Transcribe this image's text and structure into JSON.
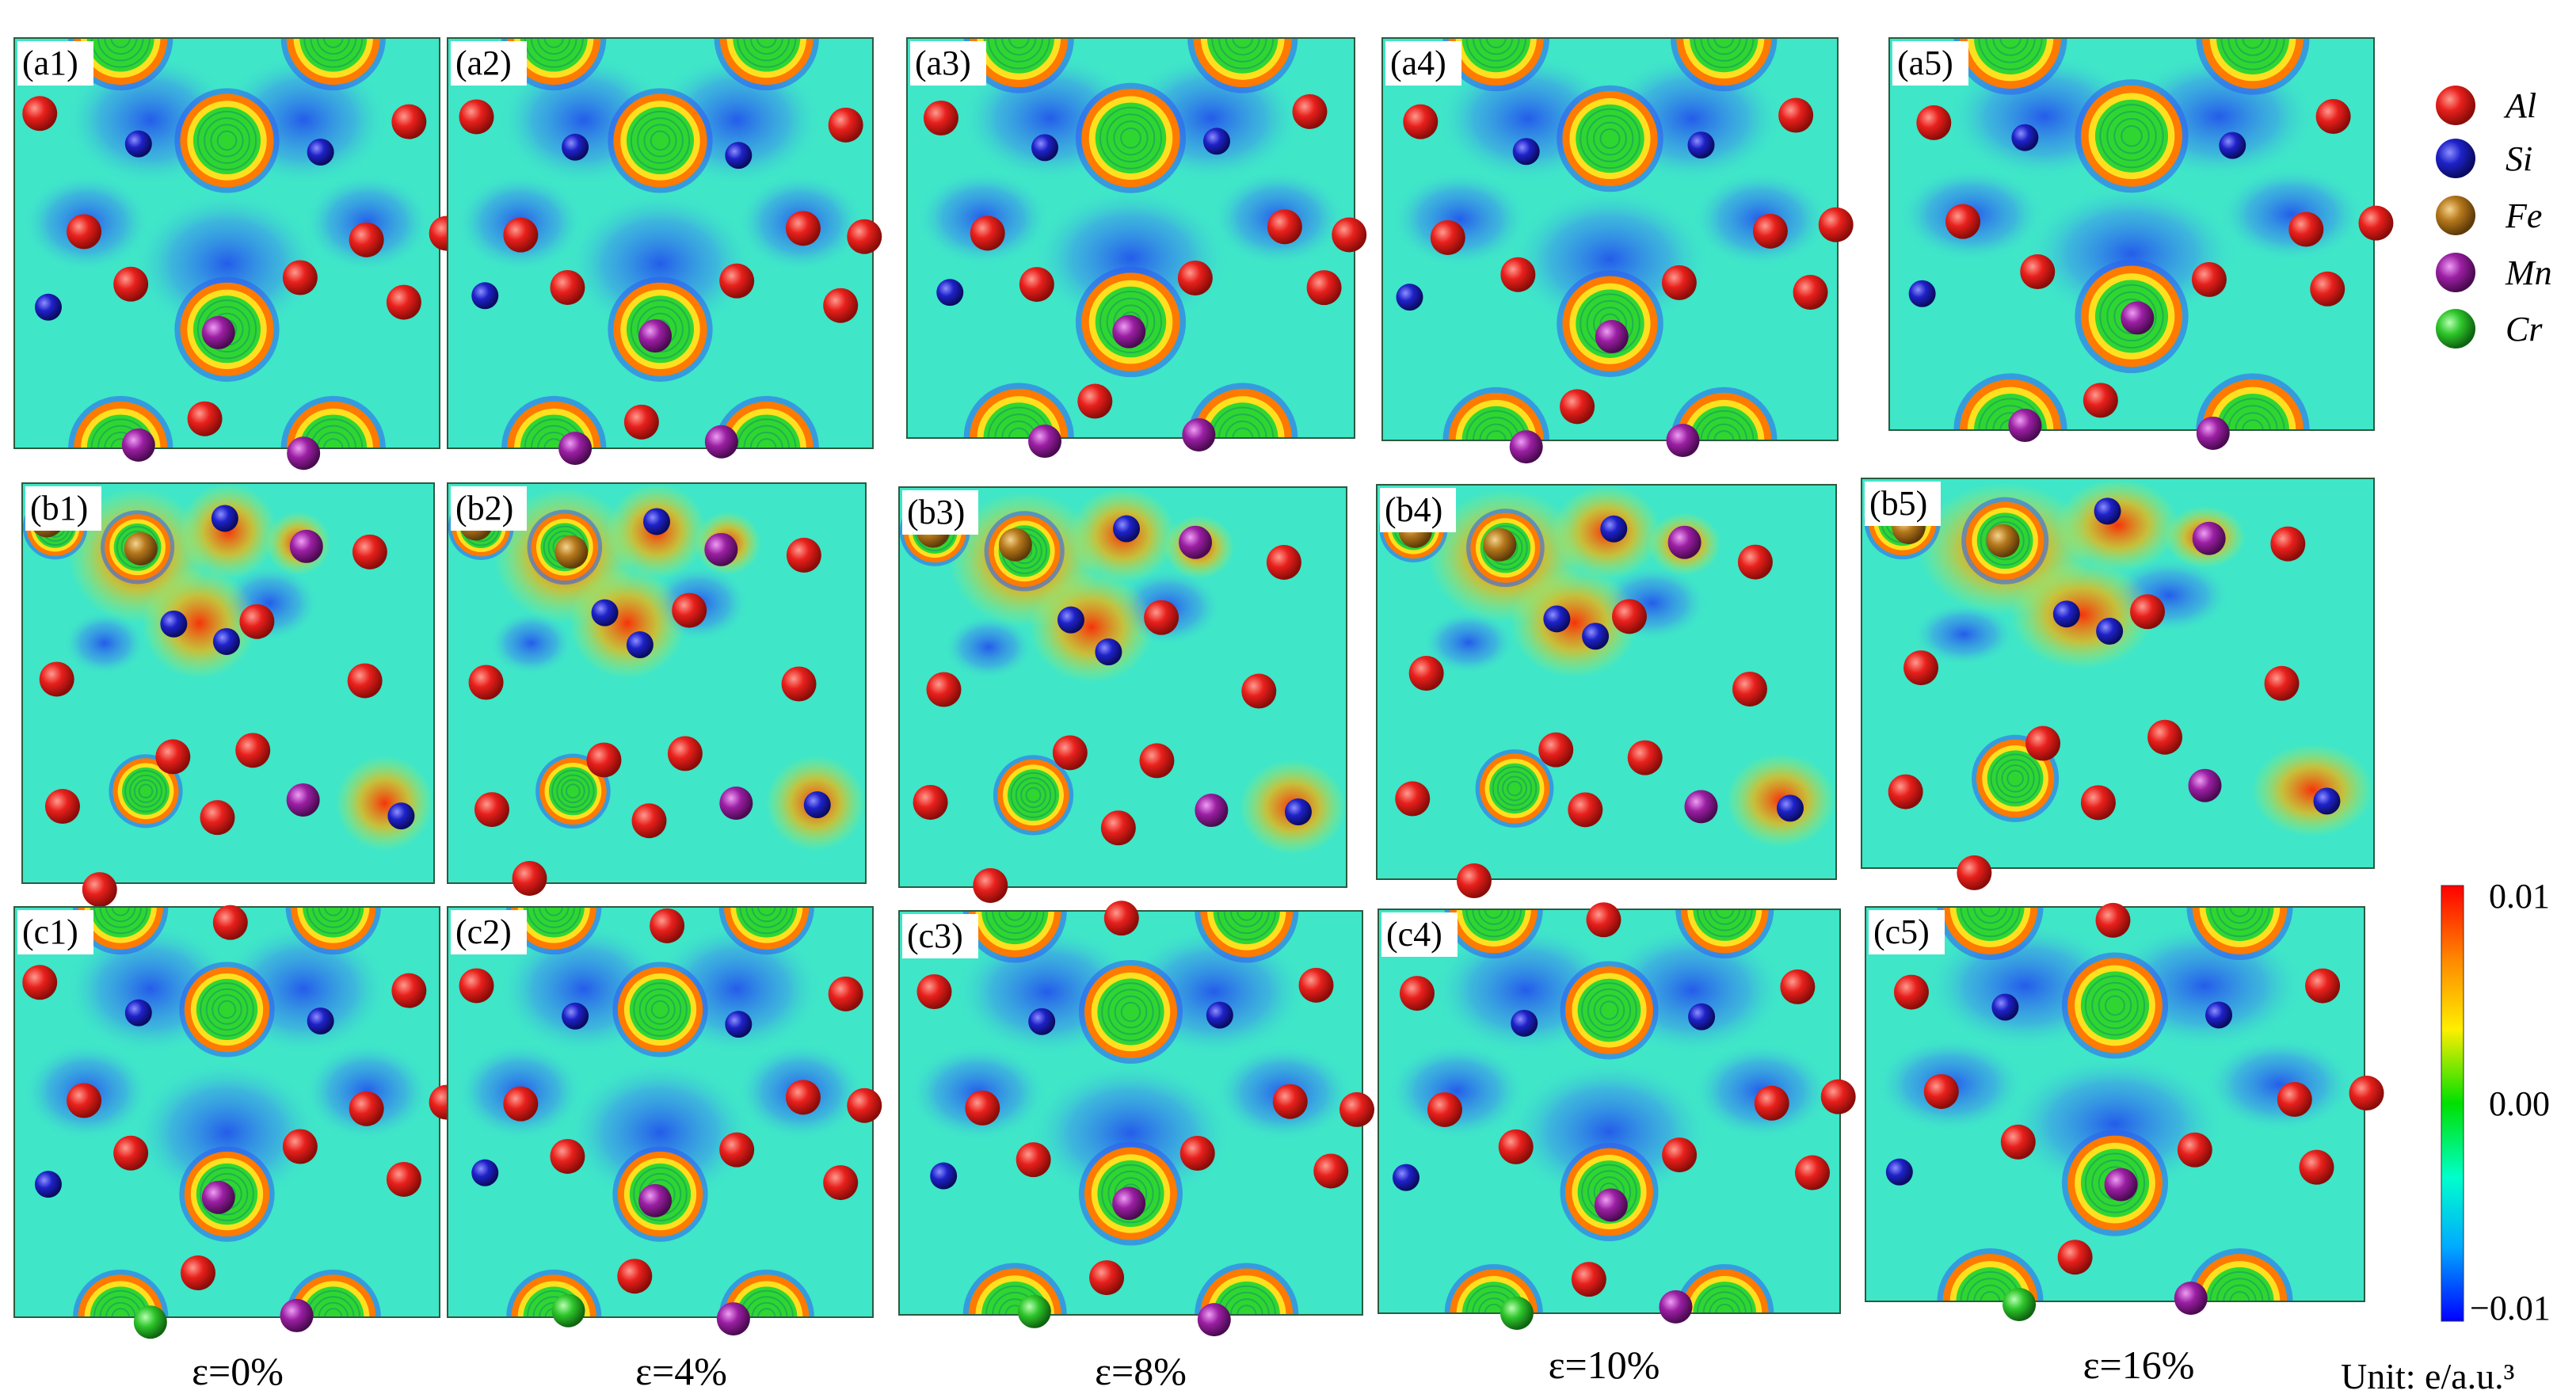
{
  "rows": [
    {
      "panels": [
        "(a1)",
        "(a2)",
        "(a3)",
        "(a4)",
        "(a5)"
      ]
    },
    {
      "panels": [
        "(b1)",
        "(b2)",
        "(b3)",
        "(b4)",
        "(b5)"
      ]
    },
    {
      "panels": [
        "(c1)",
        "(c2)",
        "(c3)",
        "(c4)",
        "(c5)"
      ]
    }
  ],
  "strain_labels": [
    "ε=0%",
    "ε=4%",
    "ε=8%",
    "ε=10%",
    "ε=16%"
  ],
  "legend": [
    {
      "label": "Al",
      "color": "#e8201c"
    },
    {
      "label": "Si",
      "color": "#1e22c8"
    },
    {
      "label": "Fe",
      "color": "#b5781c"
    },
    {
      "label": "Mn",
      "color": "#9b1fa3"
    },
    {
      "label": "Cr",
      "color": "#2ec62b"
    }
  ],
  "colorbar": {
    "max_label": "0.01",
    "mid_label": "0.00",
    "min_label": "−0.01",
    "unit_label": "Unit: e/a.u.³",
    "range": [
      -0.01,
      0.01
    ],
    "stops": [
      "#0000ff",
      "#00aaff",
      "#00ffcc",
      "#00e000",
      "#ffee00",
      "#ff8800",
      "#ff0000"
    ]
  },
  "map_colors": {
    "background": "#3fe6c8",
    "depletion": "#2e5cf0",
    "accumulation": "#ff4a10",
    "ring_outer": "#ff7a00",
    "ring_mid": "#ffe020",
    "ring_inner": "#30d630"
  }
}
